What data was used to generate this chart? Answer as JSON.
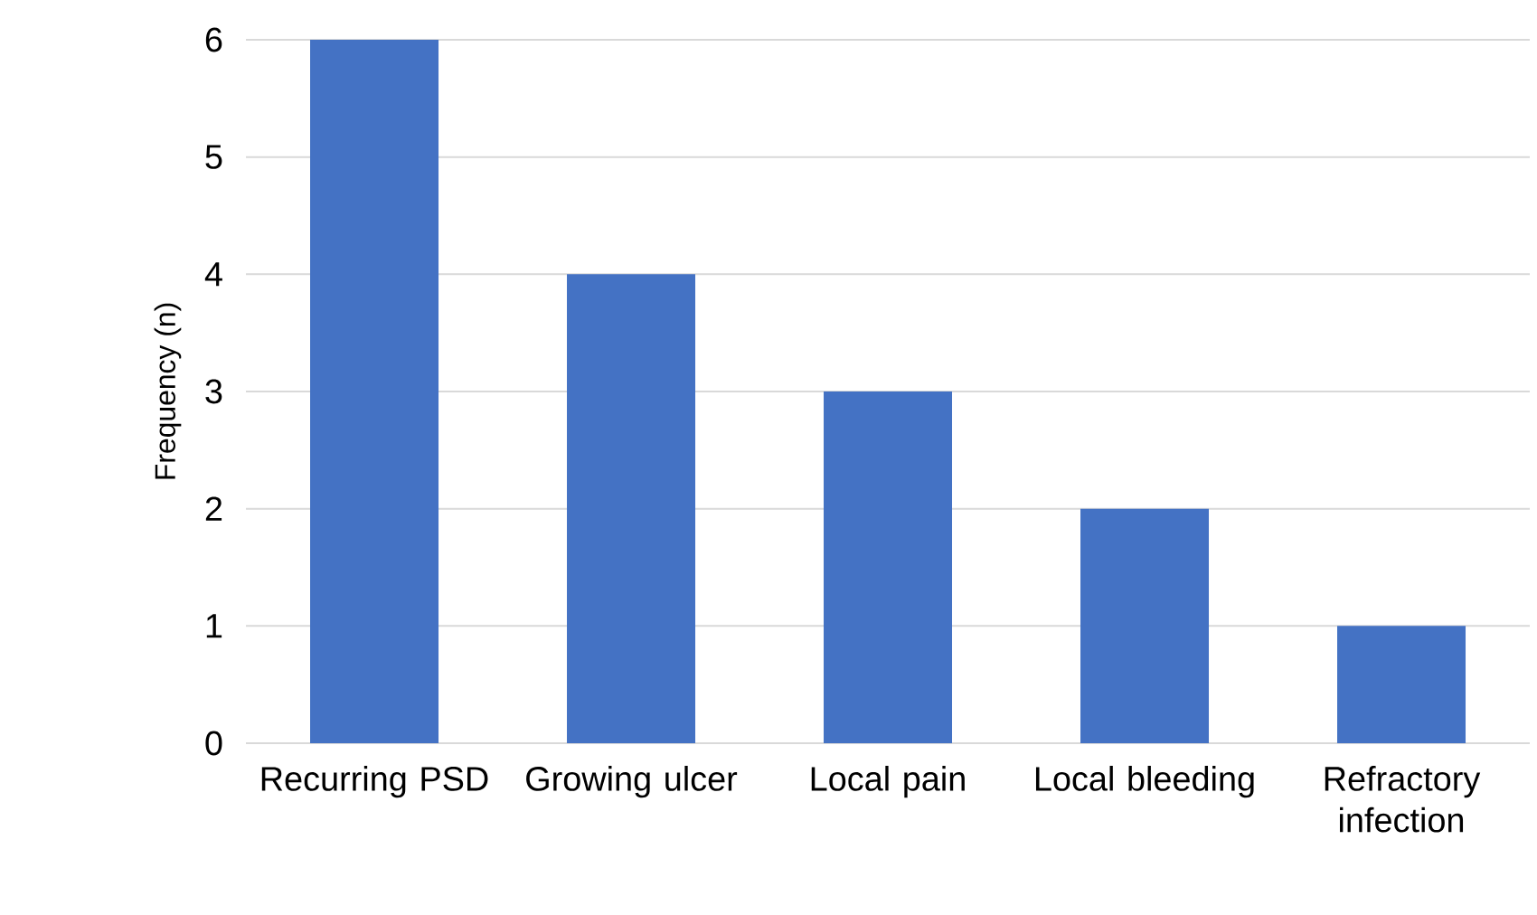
{
  "chart_data": {
    "type": "bar",
    "ylabel": "Frequency (n)",
    "categories": [
      "Recurring PSD",
      "Growing ulcer",
      "Local pain",
      "Local bleeding",
      "Refractory infection"
    ],
    "values": [
      6,
      4,
      3,
      2,
      1
    ],
    "color": "#4472c4",
    "ylim": [
      0,
      6
    ],
    "yticks": [
      0,
      1,
      2,
      3,
      4,
      5,
      6
    ],
    "grid": "y"
  }
}
